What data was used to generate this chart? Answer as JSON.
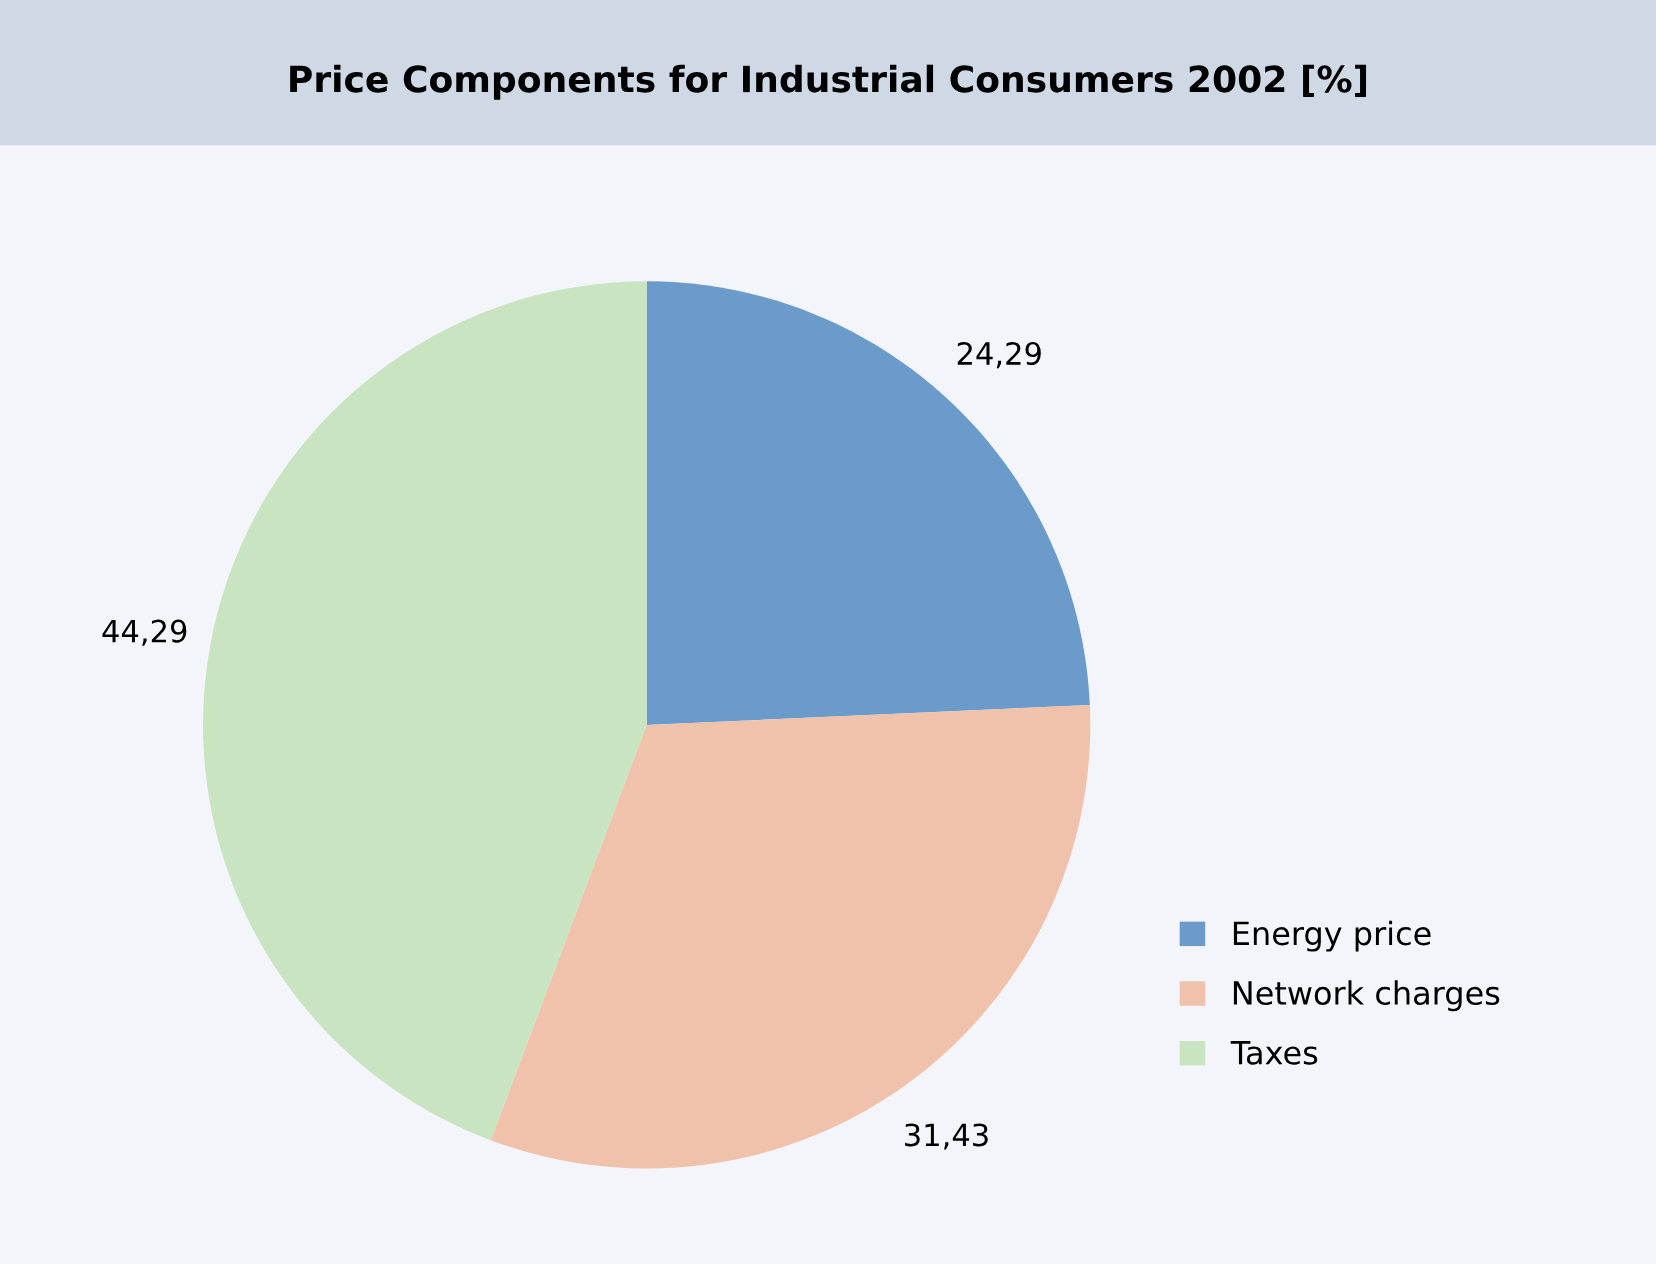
{
  "chart_data": {
    "type": "pie",
    "title": "Price Components for Industrial Consumers 2002 [%]",
    "categories": [
      "Energy price",
      "Network charges",
      "Taxes"
    ],
    "values": [
      24.29,
      31.43,
      44.29
    ],
    "value_labels": [
      "24,29",
      "31,43",
      "44,29"
    ],
    "colors": [
      "#6a9bcb",
      "#f0c2ab",
      "#c8e4c0"
    ],
    "legend": "bottom right"
  }
}
